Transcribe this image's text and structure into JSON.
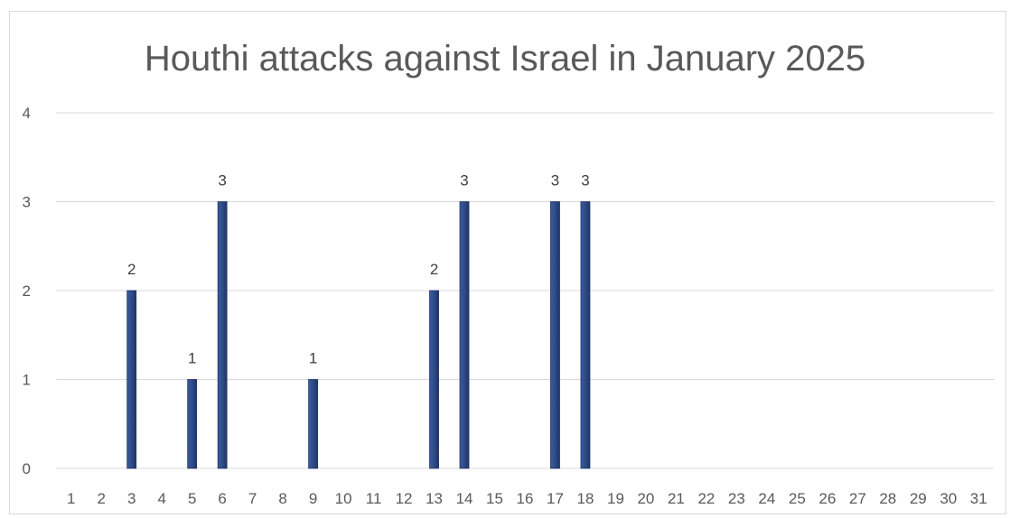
{
  "chart_data": {
    "type": "bar",
    "title": "Houthi attacks against Israel in January 2025",
    "xlabel": "",
    "ylabel": "",
    "categories": [
      "1",
      "2",
      "3",
      "4",
      "5",
      "6",
      "7",
      "8",
      "9",
      "10",
      "11",
      "12",
      "13",
      "14",
      "15",
      "16",
      "17",
      "18",
      "19",
      "20",
      "21",
      "22",
      "23",
      "24",
      "25",
      "26",
      "27",
      "28",
      "29",
      "30",
      "31"
    ],
    "values": [
      0,
      0,
      2,
      0,
      1,
      3,
      0,
      0,
      1,
      0,
      0,
      0,
      2,
      3,
      0,
      0,
      3,
      3,
      0,
      0,
      0,
      0,
      0,
      0,
      0,
      0,
      0,
      0,
      0,
      0,
      0
    ],
    "ylim": [
      0,
      4
    ],
    "yticks": [
      "0",
      "1",
      "2",
      "3",
      "4"
    ],
    "grid": true,
    "legend": "none",
    "colors": {
      "bar": "#2f4b86",
      "bar_edge": "#1f3566",
      "grid": "#d9d9d9"
    }
  }
}
